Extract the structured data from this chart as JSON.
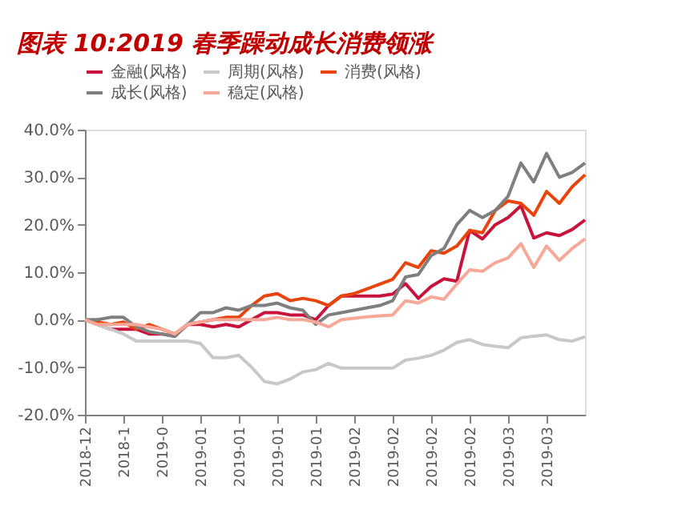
{
  "chart_data": {
    "type": "line",
    "title": "图表 10:2019 春季躁动成长消费领涨",
    "categories": [
      "2018-12",
      null,
      null,
      "2018-1",
      null,
      null,
      "2019-0",
      null,
      null,
      "2019-01",
      null,
      null,
      "2019-01",
      null,
      null,
      "2019-01",
      null,
      null,
      "2019-01",
      null,
      null,
      "2019-02",
      null,
      null,
      "2019-02",
      null,
      null,
      "2019-02",
      null,
      null,
      "2019-02",
      null,
      null,
      "2019-03",
      null,
      null,
      "2019-03",
      null,
      null,
      null
    ],
    "series": [
      {
        "name": "金融(风格)",
        "color": "#c8143c",
        "values": [
          0,
          -1,
          -2,
          -2,
          -2,
          -3,
          -3,
          -3.5,
          -1,
          -1,
          -1.5,
          -1,
          -1.5,
          0,
          1.5,
          1.5,
          1,
          1,
          0,
          3,
          5,
          5,
          5,
          5,
          5.4,
          7.6,
          4.5,
          7,
          8.6,
          8.1,
          18.8,
          17,
          20,
          21.5,
          24,
          17.2,
          18.3,
          17.7,
          19,
          21
        ]
      },
      {
        "name": "周期(风格)",
        "color": "#c8c8c8",
        "values": [
          0,
          -1,
          -2,
          -3,
          -4.5,
          -4.5,
          -4.5,
          -4.5,
          -4.5,
          -5,
          -8,
          -8,
          -7.5,
          -10,
          -13,
          -13.5,
          -12.5,
          -11,
          -10.5,
          -9.2,
          -10.2,
          -10.2,
          -10.2,
          -10.2,
          -10.2,
          -8.5,
          -8.1,
          -7.5,
          -6.4,
          -4.8,
          -4.2,
          -5.2,
          -5.6,
          -5.9,
          -3.8,
          -3.5,
          -3.2,
          -4.2,
          -4.5,
          -3.6
        ]
      },
      {
        "name": "消费(风格)",
        "color": "#e8440c",
        "values": [
          0,
          -0.5,
          -1,
          -0.5,
          -2,
          -1,
          -2,
          -3,
          -1,
          -0.5,
          0,
          0.5,
          0.5,
          3,
          5,
          5.5,
          4,
          4.5,
          4,
          3,
          5,
          5.5,
          6.5,
          7.5,
          8.5,
          12,
          11,
          14.5,
          14,
          15.5,
          18.8,
          18.3,
          23,
          25,
          24.5,
          22,
          27,
          24.5,
          28,
          30.5
        ]
      },
      {
        "name": "成长(风格)",
        "color": "#7f7f7f",
        "values": [
          0,
          0,
          0.5,
          0.5,
          -1.5,
          -2.5,
          -3,
          -3.5,
          -1,
          1.5,
          1.5,
          2.5,
          2,
          3,
          3,
          3.5,
          2.5,
          2,
          -1,
          1,
          1.5,
          2,
          2.5,
          3,
          4,
          9,
          9.5,
          13.5,
          15,
          20,
          23,
          21.5,
          23,
          26,
          33,
          29,
          35,
          30,
          31,
          33
        ]
      },
      {
        "name": "稳定(风格)",
        "color": "#f8a898",
        "values": [
          0,
          -1,
          -1,
          -1,
          -1,
          -1.5,
          -2,
          -3,
          -1,
          -0.5,
          0,
          0,
          0,
          0,
          0,
          0.5,
          0,
          0,
          -0.5,
          -1.5,
          0,
          0.3,
          0.6,
          0.8,
          1,
          4,
          3.5,
          4.8,
          4.3,
          7.5,
          10.5,
          10.2,
          12,
          13,
          16,
          11,
          15.5,
          12.5,
          15,
          17
        ]
      }
    ],
    "ylim": [
      -20,
      40
    ],
    "yticks": [
      {
        "value": -20,
        "label": "-20.0%"
      },
      {
        "value": -10,
        "label": "-10.0%"
      },
      {
        "value": 0,
        "label": "0.0%"
      },
      {
        "value": 10,
        "label": "10.0%"
      },
      {
        "value": 20,
        "label": "20.0%"
      },
      {
        "value": 30,
        "label": "30.0%"
      },
      {
        "value": 40,
        "label": "40.0%"
      }
    ],
    "grid": false,
    "legend": "top",
    "marker": "none",
    "line_style": "solid"
  }
}
